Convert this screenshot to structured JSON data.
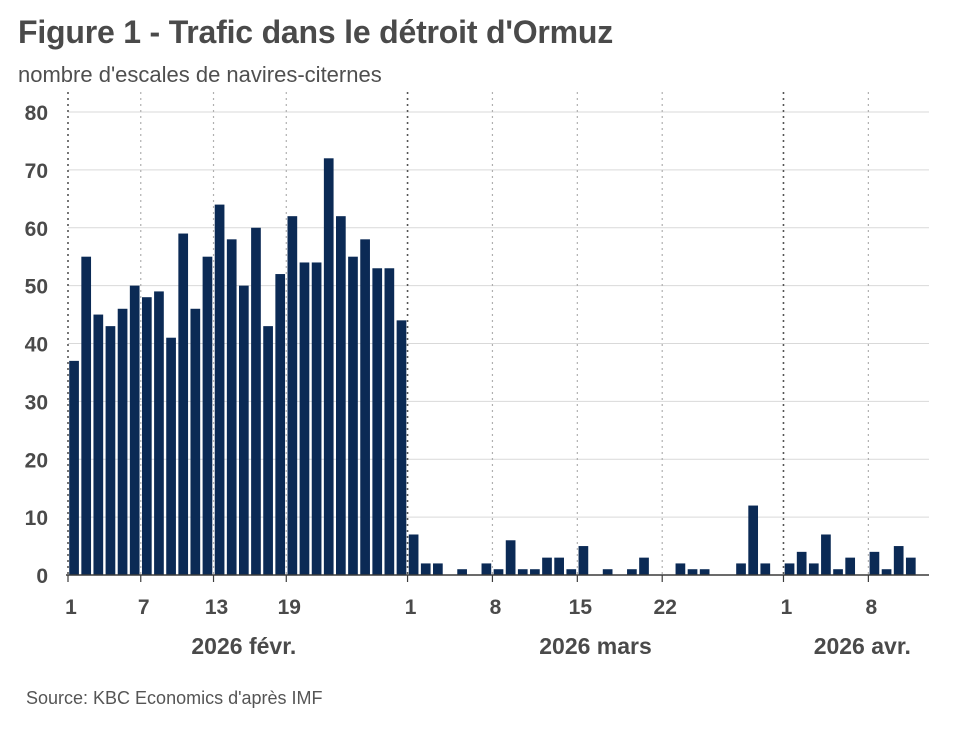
{
  "title": "Figure 1 - Trafic dans le détroit d'Ormuz",
  "subtitle": "nombre d'escales de navires-citernes",
  "source": "Source: KBC Economics d'après IMF",
  "colors": {
    "bar": "#0b2a55",
    "grid": "#d9d9d9",
    "axis": "#3a3a3a",
    "text": "#4a4a4a"
  },
  "chart_data": {
    "type": "bar",
    "title": "Figure 1 - Trafic dans le détroit d'Ormuz",
    "ylabel": "nombre d'escales de navires-citernes",
    "xlabel": "",
    "ylim": [
      0,
      80
    ],
    "yticks": [
      0,
      10,
      20,
      30,
      40,
      50,
      60,
      70,
      80
    ],
    "grid": true,
    "x": [
      "2026-02-01",
      "2026-02-02",
      "2026-02-03",
      "2026-02-04",
      "2026-02-05",
      "2026-02-06",
      "2026-02-07",
      "2026-02-08",
      "2026-02-09",
      "2026-02-10",
      "2026-02-11",
      "2026-02-12",
      "2026-02-13",
      "2026-02-14",
      "2026-02-15",
      "2026-02-16",
      "2026-02-17",
      "2026-02-18",
      "2026-02-19",
      "2026-02-20",
      "2026-02-21",
      "2026-02-22",
      "2026-02-23",
      "2026-02-24",
      "2026-02-25",
      "2026-02-26",
      "2026-02-27",
      "2026-02-28",
      "2026-03-01",
      "2026-03-02",
      "2026-03-03",
      "2026-03-04",
      "2026-03-05",
      "2026-03-06",
      "2026-03-07",
      "2026-03-08",
      "2026-03-09",
      "2026-03-10",
      "2026-03-11",
      "2026-03-12",
      "2026-03-13",
      "2026-03-14",
      "2026-03-15",
      "2026-03-16",
      "2026-03-17",
      "2026-03-18",
      "2026-03-19",
      "2026-03-20",
      "2026-03-21",
      "2026-03-22",
      "2026-03-23",
      "2026-03-24",
      "2026-03-25",
      "2026-03-26",
      "2026-03-27",
      "2026-03-28",
      "2026-03-29",
      "2026-03-30",
      "2026-03-31",
      "2026-04-01",
      "2026-04-02",
      "2026-04-03",
      "2026-04-04",
      "2026-04-05",
      "2026-04-06",
      "2026-04-07",
      "2026-04-08",
      "2026-04-09",
      "2026-04-10",
      "2026-04-11",
      "2026-04-12"
    ],
    "values": [
      37,
      55,
      45,
      43,
      46,
      50,
      48,
      49,
      41,
      59,
      46,
      55,
      64,
      58,
      50,
      60,
      43,
      52,
      62,
      54,
      54,
      72,
      62,
      55,
      58,
      53,
      53,
      44,
      7,
      2,
      2,
      0,
      1,
      0,
      2,
      1,
      6,
      1,
      1,
      3,
      3,
      1,
      5,
      0,
      1,
      0,
      1,
      3,
      0,
      0,
      2,
      1,
      1,
      0,
      0,
      2,
      12,
      2,
      0,
      2,
      4,
      2,
      7,
      1,
      3,
      0,
      4,
      1,
      5,
      3,
      0
    ],
    "x_tick_labels": [
      {
        "label": "1",
        "date": "2026-02-01"
      },
      {
        "label": "7",
        "date": "2026-02-07"
      },
      {
        "label": "13",
        "date": "2026-02-13"
      },
      {
        "label": "19",
        "date": "2026-02-19"
      },
      {
        "label": "1",
        "date": "2026-03-01"
      },
      {
        "label": "8",
        "date": "2026-03-08"
      },
      {
        "label": "15",
        "date": "2026-03-15"
      },
      {
        "label": "22",
        "date": "2026-03-22"
      },
      {
        "label": "1",
        "date": "2026-04-01"
      },
      {
        "label": "8",
        "date": "2026-04-08"
      }
    ],
    "month_boundaries": [
      "2026-03-01",
      "2026-04-01"
    ],
    "month_labels": [
      {
        "label": "2026 févr.",
        "date": "2026-02-15"
      },
      {
        "label": "2026 mars",
        "date": "2026-03-16"
      },
      {
        "label": "2026 avr.",
        "date": "2026-04-07"
      }
    ]
  }
}
